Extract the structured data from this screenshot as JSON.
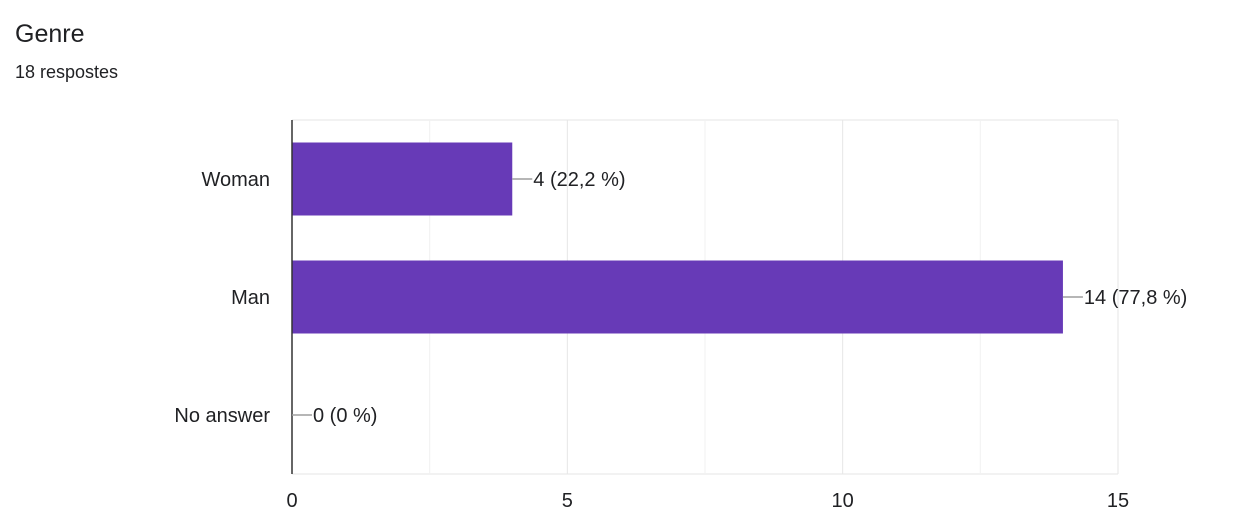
{
  "header": {
    "title": "Genre",
    "response_count": "18 respostes"
  },
  "colors": {
    "bar": "#673AB7",
    "grid": "#e6e6e6",
    "axis": "#333333",
    "leader": "#9e9e9e",
    "text": "#202124"
  },
  "chart_data": {
    "type": "bar",
    "orientation": "horizontal",
    "categories": [
      "Woman",
      "Man",
      "No answer"
    ],
    "values": [
      4,
      14,
      0
    ],
    "data_labels": [
      "4 (22,2 %)",
      "14 (77,8 %)",
      "0 (0 %)"
    ],
    "xlim": [
      0,
      15
    ],
    "x_ticks": [
      0,
      5,
      10,
      15
    ],
    "x_tick_labels": [
      "0",
      "5",
      "10",
      "15"
    ],
    "grid": true,
    "legend": "none"
  }
}
